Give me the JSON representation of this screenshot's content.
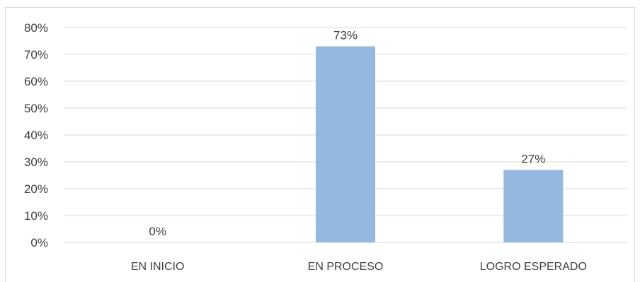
{
  "chart_data": {
    "type": "bar",
    "categories": [
      "EN INICIO",
      "EN PROCESO",
      "LOGRO ESPERADO"
    ],
    "values": [
      0,
      73,
      27
    ],
    "data_labels": [
      "0%",
      "73%",
      "27%"
    ],
    "title": "",
    "xlabel": "",
    "ylabel": "",
    "ylim": [
      0,
      80
    ],
    "yticks": [
      0,
      10,
      20,
      30,
      40,
      50,
      60,
      70,
      80
    ],
    "ytick_labels": [
      "0%",
      "10%",
      "20%",
      "30%",
      "40%",
      "50%",
      "60%",
      "70%",
      "80%"
    ],
    "grid": true,
    "legend": "none",
    "bar_color": "#95b8e0",
    "grid_color": "#d9d9d9",
    "text_color": "#404040"
  }
}
